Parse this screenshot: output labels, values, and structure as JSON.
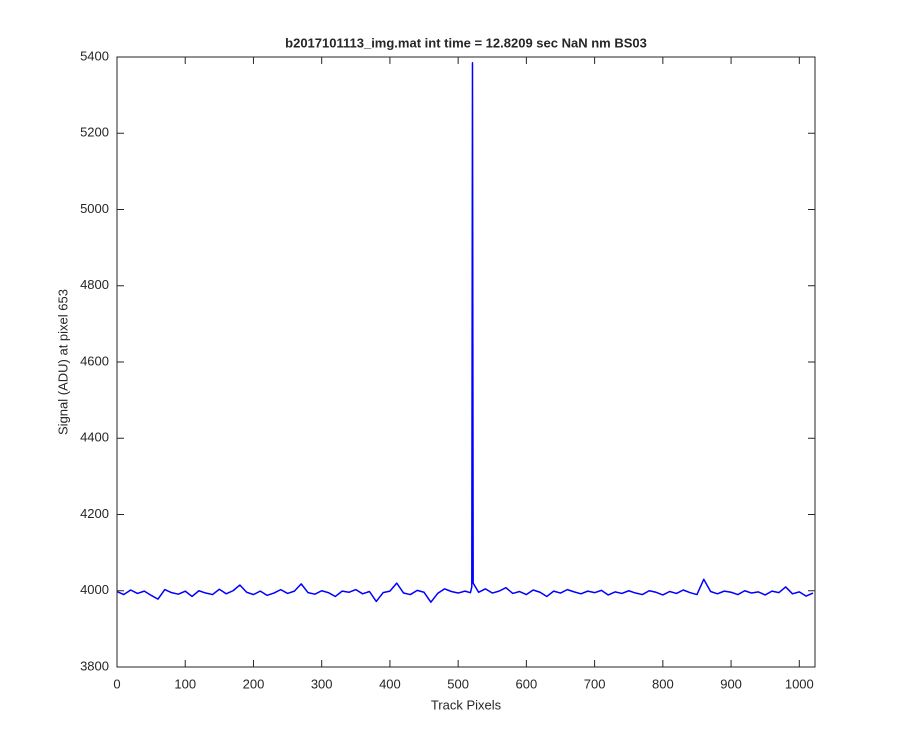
{
  "chart_data": {
    "type": "line",
    "title": "b2017101113_img.mat int time = 12.8209 sec  NaN nm BS03",
    "x_label": "Track Pixels",
    "y_label": "Signal (ADU) at pixel 653",
    "x": [
      0,
      10,
      20,
      30,
      40,
      50,
      60,
      70,
      80,
      90,
      100,
      110,
      120,
      130,
      140,
      150,
      160,
      170,
      180,
      190,
      200,
      210,
      220,
      230,
      240,
      250,
      260,
      270,
      280,
      290,
      300,
      310,
      320,
      330,
      340,
      350,
      360,
      370,
      380,
      390,
      400,
      410,
      420,
      430,
      440,
      450,
      460,
      470,
      480,
      490,
      500,
      510,
      518,
      520,
      521,
      522,
      530,
      540,
      550,
      560,
      570,
      580,
      590,
      600,
      610,
      620,
      630,
      640,
      650,
      660,
      670,
      680,
      690,
      700,
      710,
      720,
      730,
      740,
      750,
      760,
      770,
      780,
      790,
      800,
      810,
      820,
      830,
      840,
      850,
      860,
      870,
      880,
      890,
      900,
      910,
      920,
      930,
      940,
      950,
      960,
      970,
      980,
      990,
      1000,
      1010,
      1020
    ],
    "series": [
      {
        "name": "Signal",
        "color": "#0000ff",
        "values": [
          3998,
          3990,
          4002,
          3993,
          3999,
          3988,
          3978,
          4003,
          3995,
          3991,
          3999,
          3985,
          4000,
          3994,
          3990,
          4004,
          3992,
          4000,
          4015,
          3996,
          3990,
          3999,
          3988,
          3994,
          4003,
          3993,
          3999,
          4018,
          3995,
          3991,
          4000,
          3995,
          3985,
          3999,
          3996,
          4003,
          3992,
          3998,
          3972,
          3995,
          3999,
          4020,
          3994,
          3990,
          4001,
          3996,
          3970,
          3993,
          4005,
          3998,
          3994,
          3999,
          3995,
          4010,
          5385,
          4020,
          3996,
          4005,
          3994,
          3999,
          4008,
          3993,
          3998,
          3990,
          4002,
          3996,
          3985,
          3999,
          3994,
          4003,
          3997,
          3992,
          3999,
          3995,
          4001,
          3989,
          3997,
          3993,
          4000,
          3994,
          3990,
          4000,
          3996,
          3989,
          3998,
          3993,
          4002,
          3995,
          3990,
          4030,
          3998,
          3992,
          3999,
          3996,
          3990,
          4000,
          3994,
          3997,
          3989,
          3999,
          3995,
          4010,
          3992,
          3997,
          3986,
          3994
        ]
      }
    ],
    "xlim": [
      0,
      1023
    ],
    "ylim": [
      3800,
      5400
    ],
    "xticks": [
      0,
      100,
      200,
      300,
      400,
      500,
      600,
      700,
      800,
      900,
      1000
    ],
    "yticks": [
      3800,
      4000,
      4200,
      4400,
      4600,
      4800,
      5000,
      5200,
      5400
    ],
    "grid": false
  }
}
